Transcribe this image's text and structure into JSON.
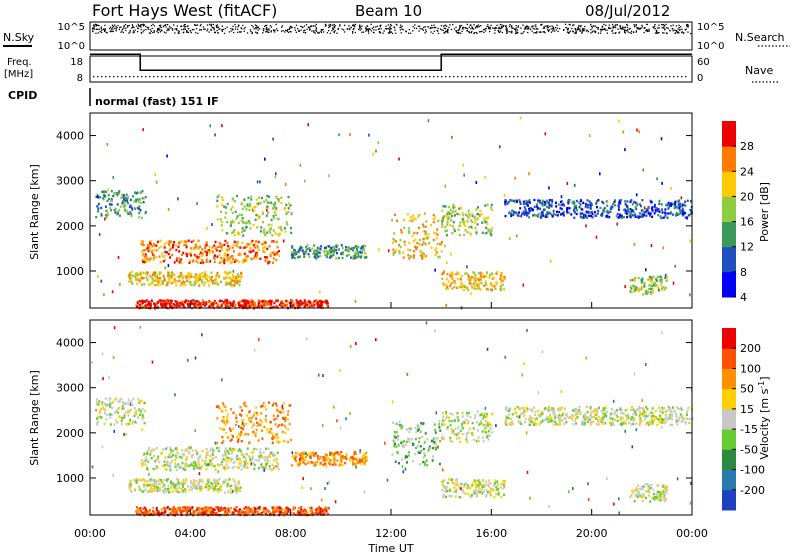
{
  "header": {
    "station": "Fort Hays West (fitACF)",
    "beam": "Beam 10",
    "date": "08/Jul/2012"
  },
  "side_labels": {
    "nsky": "N.Sky",
    "nsearch": "N.Search",
    "freq_line1": "Freq.",
    "freq_line2": "[MHz]",
    "nave": "Nave",
    "cpid": "CPID"
  },
  "mode_text": "normal (fast) 151 IF",
  "chart_data": [
    {
      "id": "noise",
      "type": "scatter",
      "left_ticks": [
        "10^5",
        "10^0"
      ],
      "right_ticks": [
        "10^5",
        "10^0"
      ],
      "series": [
        {
          "name": "N.Sky",
          "level": 0.85
        },
        {
          "name": "N.Search",
          "level": 0.7
        }
      ]
    },
    {
      "id": "frequency",
      "type": "line",
      "left_ticks": [
        "18",
        "8"
      ],
      "right_ticks": [
        "60",
        "0"
      ],
      "freq_steps": [
        {
          "from": 0,
          "to": 2,
          "mhz": 18
        },
        {
          "from": 2,
          "to": 14,
          "mhz": 11.5
        },
        {
          "from": 14,
          "to": 24,
          "mhz": 18
        }
      ],
      "nave": 10
    },
    {
      "id": "power",
      "type": "heatmap",
      "ylabel": "Slant Range [km]",
      "yticks": [
        "4000",
        "3000",
        "2000",
        "1000"
      ],
      "xlim": [
        0,
        24
      ],
      "ylim": [
        180,
        4500
      ],
      "colorbar": {
        "label": "Power [dB]",
        "ticks": [
          "28",
          "24",
          "20",
          "16",
          "12",
          "8",
          "4"
        ],
        "colors": [
          "#0000ff",
          "#2050c0",
          "#3a9a5a",
          "#90cc40",
          "#ffc800",
          "#ff7a00",
          "#ee0000"
        ]
      },
      "bands": [
        {
          "t0": 0.2,
          "t1": 2.2,
          "r0": 2200,
          "r1": 2800,
          "level": 2
        },
        {
          "t0": 2.0,
          "t1": 7.5,
          "r0": 1200,
          "r1": 1700,
          "level": 5
        },
        {
          "t0": 1.5,
          "t1": 6.0,
          "r0": 700,
          "r1": 1000,
          "level": 4
        },
        {
          "t0": 1.8,
          "t1": 9.5,
          "r0": 200,
          "r1": 380,
          "level": 6
        },
        {
          "t0": 5.0,
          "t1": 8.0,
          "r0": 1800,
          "r1": 2700,
          "level": 3
        },
        {
          "t0": 8.0,
          "t1": 11.0,
          "r0": 1300,
          "r1": 1600,
          "level": 2
        },
        {
          "t0": 12.0,
          "t1": 14.0,
          "r0": 1300,
          "r1": 2300,
          "level": 4
        },
        {
          "t0": 14.0,
          "t1": 16.0,
          "r0": 1800,
          "r1": 2500,
          "level": 3
        },
        {
          "t0": 14.0,
          "t1": 16.5,
          "r0": 600,
          "r1": 1000,
          "level": 4
        },
        {
          "t0": 16.5,
          "t1": 24.0,
          "r0": 2200,
          "r1": 2600,
          "level": 1
        },
        {
          "t0": 21.5,
          "t1": 23.0,
          "r0": 500,
          "r1": 900,
          "level": 3
        }
      ]
    },
    {
      "id": "velocity",
      "type": "heatmap",
      "xlabel": "Time UT",
      "ylabel": "Slant Range [km]",
      "xticks": [
        "00:00",
        "04:00",
        "08:00",
        "12:00",
        "16:00",
        "20:00",
        "00:00"
      ],
      "yticks": [
        "4000",
        "3000",
        "2000",
        "1000"
      ],
      "xlim": [
        0,
        24
      ],
      "ylim": [
        180,
        4500
      ],
      "colorbar": {
        "label": "Velocity [m s^-1]",
        "ticks": [
          "200",
          "100",
          "50",
          "15",
          "-15",
          "-50",
          "-100",
          "-200"
        ],
        "colors": [
          "#2040c0",
          "#2a7ab0",
          "#2a8a40",
          "#66cc30",
          "#c8c8c8",
          "#ffd000",
          "#ff9000",
          "#ff5000",
          "#ee0000"
        ]
      },
      "bands": [
        {
          "t0": 0.2,
          "t1": 2.2,
          "r0": 2200,
          "r1": 2800,
          "level": 4
        },
        {
          "t0": 2.0,
          "t1": 7.5,
          "r0": 1200,
          "r1": 1700,
          "level": 4
        },
        {
          "t0": 1.5,
          "t1": 6.0,
          "r0": 700,
          "r1": 1000,
          "level": 4
        },
        {
          "t0": 1.8,
          "t1": 9.5,
          "r0": 200,
          "r1": 380,
          "level": 7
        },
        {
          "t0": 5.0,
          "t1": 8.0,
          "r0": 1800,
          "r1": 2700,
          "level": 6
        },
        {
          "t0": 8.0,
          "t1": 11.0,
          "r0": 1300,
          "r1": 1600,
          "level": 6
        },
        {
          "t0": 12.0,
          "t1": 14.0,
          "r0": 1300,
          "r1": 2300,
          "level": 3
        },
        {
          "t0": 14.0,
          "t1": 16.0,
          "r0": 1800,
          "r1": 2500,
          "level": 4
        },
        {
          "t0": 14.0,
          "t1": 16.5,
          "r0": 600,
          "r1": 1000,
          "level": 4
        },
        {
          "t0": 16.5,
          "t1": 24.0,
          "r0": 2200,
          "r1": 2600,
          "level": 4
        },
        {
          "t0": 21.5,
          "t1": 23.0,
          "r0": 500,
          "r1": 900,
          "level": 4
        }
      ]
    }
  ]
}
